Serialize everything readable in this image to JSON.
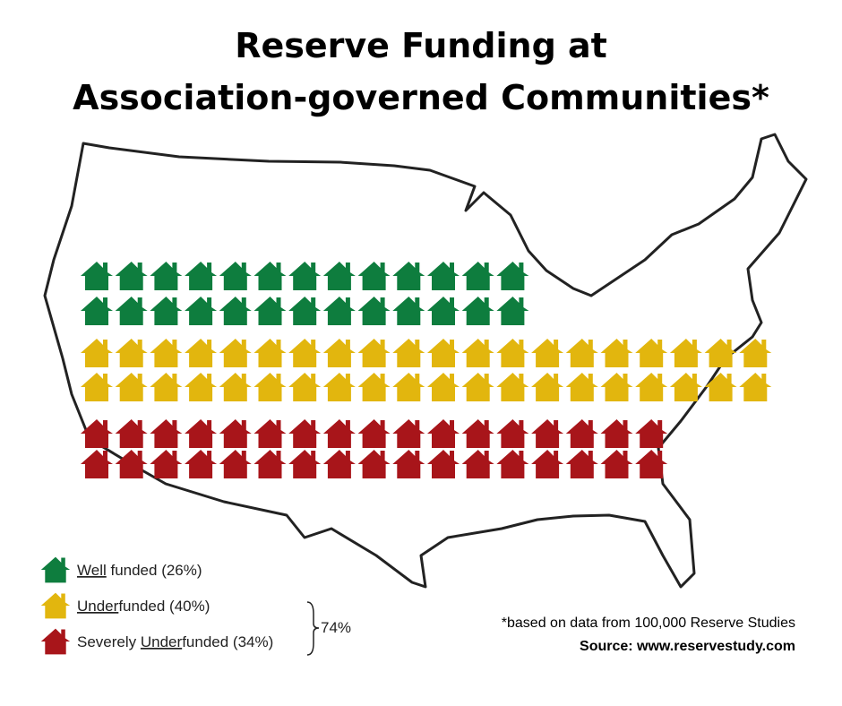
{
  "chart_data": {
    "type": "pictogram",
    "title": [
      "Reserve Funding at",
      "Association-governed Communities*"
    ],
    "series": [
      {
        "name": [
          {
            "text": "Well",
            "underline": true
          },
          {
            "text": " funded (26%)"
          }
        ],
        "color": "#0e7d3e",
        "value": 26
      },
      {
        "name": [
          {
            "text": "Under",
            "underline": true
          },
          {
            "text": "funded (40%)"
          }
        ],
        "color": "#e2b60e",
        "value": 40
      },
      {
        "name": [
          {
            "text": "Severely "
          },
          {
            "text": "Under",
            "underline": true
          },
          {
            "text": "funded (34%)"
          }
        ],
        "color": "#a8151a",
        "value": 34
      }
    ],
    "bracket_label": "74%",
    "footnote": "*based on data from 100,000 Reserve Studies",
    "source": "Source: www.reservestudy.com"
  }
}
